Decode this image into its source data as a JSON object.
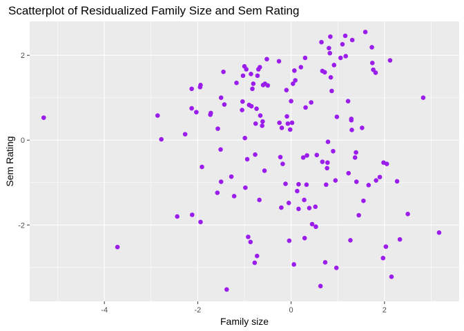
{
  "chart_data": {
    "type": "scatter",
    "title": "Scatterplot of Residualized Family Size and Sem Rating",
    "xlabel": "Family size",
    "ylabel": "Sem Rating",
    "xlim": [
      -5.6,
      3.6
    ],
    "ylim": [
      -3.8,
      2.8
    ],
    "x_ticks": [
      -4,
      -2,
      0,
      2
    ],
    "y_ticks": [
      -2,
      0,
      2
    ],
    "x_tick_labels": [
      "-4",
      "-2",
      "0",
      "2"
    ],
    "y_tick_labels": [
      "-2",
      "0",
      "2"
    ],
    "grid": true,
    "colors": {
      "point": "#9B1DEB",
      "panel": "#EBEBEB",
      "grid": "#FFFFFF"
    },
    "points": [
      [
        -5.3,
        0.53
      ],
      [
        -3.72,
        -2.52
      ],
      [
        -2.86,
        0.58
      ],
      [
        -2.78,
        0.02
      ],
      [
        -2.44,
        -1.8
      ],
      [
        -2.27,
        0.14
      ],
      [
        -2.13,
        1.21
      ],
      [
        -2.13,
        0.75
      ],
      [
        -2.12,
        -1.76
      ],
      [
        -2.03,
        0.66
      ],
      [
        -1.95,
        1.25
      ],
      [
        -1.94,
        1.3
      ],
      [
        -1.94,
        -1.93
      ],
      [
        -1.91,
        -0.63
      ],
      [
        -1.73,
        0.6
      ],
      [
        -1.72,
        0.64
      ],
      [
        -1.58,
        -1.24
      ],
      [
        -1.57,
        0.27
      ],
      [
        -1.51,
        -0.22
      ],
      [
        -1.5,
        -0.98
      ],
      [
        -1.5,
        1.0
      ],
      [
        -1.45,
        1.61
      ],
      [
        -1.43,
        0.84
      ],
      [
        -1.38,
        -3.52
      ],
      [
        -1.28,
        -0.86
      ],
      [
        -1.22,
        -1.32
      ],
      [
        -1.17,
        1.35
      ],
      [
        -1.05,
        0.71
      ],
      [
        -1.04,
        0.91
      ],
      [
        -1.03,
        1.52
      ],
      [
        -1.0,
        1.74
      ],
      [
        -0.99,
        0.05
      ],
      [
        -0.98,
        -1.12
      ],
      [
        -0.96,
        1.67
      ],
      [
        -0.94,
        -0.45
      ],
      [
        -0.92,
        -2.28
      ],
      [
        -0.9,
        0.83
      ],
      [
        -0.87,
        -2.4
      ],
      [
        -0.86,
        1.56
      ],
      [
        -0.85,
        0.8
      ],
      [
        -0.83,
        1.21
      ],
      [
        -0.81,
        1.33
      ],
      [
        -0.78,
        -2.89
      ],
      [
        -0.77,
        -0.34
      ],
      [
        -0.76,
        0.39
      ],
      [
        -0.74,
        0.74
      ],
      [
        -0.73,
        -2.73
      ],
      [
        -0.72,
        1.52
      ],
      [
        -0.7,
        1.67
      ],
      [
        -0.68,
        -1.41
      ],
      [
        -0.67,
        1.72
      ],
      [
        -0.66,
        0.58
      ],
      [
        -0.62,
        0.34
      ],
      [
        -0.61,
        0.44
      ],
      [
        -0.6,
        1.3
      ],
      [
        -0.57,
        -0.72
      ],
      [
        -0.56,
        1.33
      ],
      [
        -0.52,
        1.91
      ],
      [
        -0.5,
        1.29
      ],
      [
        -0.26,
        1.86
      ],
      [
        -0.25,
        0.41
      ],
      [
        -0.23,
        -0.4
      ],
      [
        -0.21,
        -1.59
      ],
      [
        -0.2,
        0.29
      ],
      [
        -0.18,
        -0.56
      ],
      [
        -0.12,
        -1.03
      ],
      [
        -0.1,
        1.18
      ],
      [
        -0.09,
        0.56
      ],
      [
        -0.07,
        0.39
      ],
      [
        -0.05,
        -1.48
      ],
      [
        -0.04,
        -2.37
      ],
      [
        -0.02,
        0.25
      ],
      [
        0.0,
        0.92
      ],
      [
        0.02,
        0.41
      ],
      [
        0.04,
        1.33
      ],
      [
        0.06,
        -2.93
      ],
      [
        0.07,
        1.64
      ],
      [
        0.09,
        1.41
      ],
      [
        0.13,
        -1.2
      ],
      [
        0.16,
        -1.04
      ],
      [
        0.16,
        -1.62
      ],
      [
        0.21,
        1.72
      ],
      [
        0.26,
        -0.41
      ],
      [
        0.28,
        -1.41
      ],
      [
        0.29,
        -2.31
      ],
      [
        0.3,
        1.94
      ],
      [
        0.31,
        0.77
      ],
      [
        0.33,
        -1.05
      ],
      [
        0.34,
        -0.36
      ],
      [
        0.39,
        -1.6
      ],
      [
        0.43,
        0.89
      ],
      [
        0.45,
        -1.98
      ],
      [
        0.52,
        -1.57
      ],
      [
        0.53,
        -2.04
      ],
      [
        0.55,
        -0.35
      ],
      [
        0.63,
        -3.44
      ],
      [
        0.65,
        2.31
      ],
      [
        0.67,
        -0.51
      ],
      [
        0.67,
        1.63
      ],
      [
        0.72,
        1.6
      ],
      [
        0.73,
        -2.88
      ],
      [
        0.75,
        -1.05
      ],
      [
        0.77,
        -0.66
      ],
      [
        0.78,
        -0.53
      ],
      [
        0.79,
        -0.04
      ],
      [
        0.81,
        2.17
      ],
      [
        0.83,
        2.05
      ],
      [
        0.84,
        2.44
      ],
      [
        0.85,
        1.48
      ],
      [
        0.87,
        1.16
      ],
      [
        0.9,
        -0.26
      ],
      [
        0.92,
        1.77
      ],
      [
        0.95,
        -0.95
      ],
      [
        0.97,
        -3.01
      ],
      [
        0.98,
        0.55
      ],
      [
        1.06,
        1.94
      ],
      [
        1.1,
        2.26
      ],
      [
        1.16,
        2.46
      ],
      [
        1.17,
        1.98
      ],
      [
        1.22,
        0.92
      ],
      [
        1.23,
        -0.78
      ],
      [
        1.27,
        -2.36
      ],
      [
        1.29,
        0.47
      ],
      [
        1.29,
        0.5
      ],
      [
        1.3,
        0.24
      ],
      [
        1.31,
        2.36
      ],
      [
        1.37,
        -0.41
      ],
      [
        1.39,
        -0.29
      ],
      [
        1.4,
        -0.98
      ],
      [
        1.45,
        -1.77
      ],
      [
        1.52,
        0.29
      ],
      [
        1.55,
        -1.43
      ],
      [
        1.59,
        2.55
      ],
      [
        1.66,
        -1.06
      ],
      [
        1.73,
        2.19
      ],
      [
        1.74,
        1.82
      ],
      [
        1.76,
        1.66
      ],
      [
        1.81,
        1.59
      ],
      [
        1.82,
        -0.95
      ],
      [
        1.9,
        -0.87
      ],
      [
        1.97,
        -2.78
      ],
      [
        1.98,
        -0.53
      ],
      [
        2.03,
        -2.51
      ],
      [
        2.05,
        -0.56
      ],
      [
        2.12,
        1.88
      ],
      [
        2.15,
        -3.22
      ],
      [
        2.27,
        -0.97
      ],
      [
        2.33,
        -2.34
      ],
      [
        2.5,
        -1.74
      ],
      [
        2.83,
        1.0
      ],
      [
        3.17,
        -2.18
      ]
    ]
  }
}
